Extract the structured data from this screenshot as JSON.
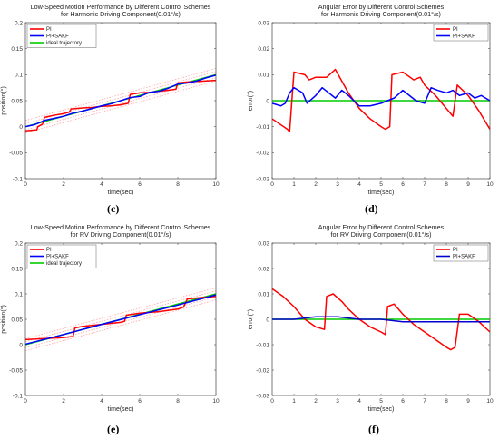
{
  "panel_labels": [
    "(c)",
    "(d)",
    "(e)",
    "(f)"
  ],
  "chart_data": [
    {
      "id": "c",
      "type": "line",
      "title": [
        "Low-Speed Motion Performance by Different Control Schemes",
        "for Harmonic Driving Component(0.01°/s)"
      ],
      "xlabel": "time(sec)",
      "ylabel": "position(°)",
      "xlim": [
        0,
        10
      ],
      "ylim": [
        -0.1,
        0.2
      ],
      "xticks": [
        0,
        2,
        4,
        6,
        8,
        10
      ],
      "yticks": [
        -0.1,
        -0.05,
        0,
        0.05,
        0.1,
        0.15,
        0.2
      ],
      "legend_position": "top-left",
      "grid": false,
      "series": [
        {
          "name": "PI",
          "color": "#ff0000",
          "x": [
            0,
            0.6,
            0.65,
            0.9,
            1.0,
            1.5,
            2.0,
            2.3,
            2.4,
            3.0,
            3.5,
            4.0,
            4.5,
            5.0,
            5.4,
            5.5,
            6.0,
            6.5,
            7.0,
            7.5,
            7.9,
            8.0,
            8.5,
            9.0,
            9.5,
            10.0
          ],
          "y": [
            -0.008,
            -0.006,
            0.0,
            0.005,
            0.018,
            0.022,
            0.025,
            0.028,
            0.034,
            0.036,
            0.037,
            0.039,
            0.04,
            0.042,
            0.045,
            0.062,
            0.065,
            0.066,
            0.068,
            0.07,
            0.072,
            0.084,
            0.086,
            0.087,
            0.088,
            0.089
          ]
        },
        {
          "name": "PI+SAKF",
          "color": "#0000ff",
          "x": [
            0,
            0.5,
            1.0,
            1.5,
            2.0,
            2.5,
            3.0,
            3.5,
            4.0,
            4.5,
            5.0,
            5.5,
            6.0,
            6.5,
            7.0,
            7.5,
            8.0,
            8.5,
            9.0,
            9.5,
            10.0
          ],
          "y": [
            0.0,
            0.004,
            0.012,
            0.016,
            0.02,
            0.026,
            0.03,
            0.035,
            0.04,
            0.044,
            0.05,
            0.056,
            0.058,
            0.066,
            0.068,
            0.074,
            0.082,
            0.084,
            0.088,
            0.094,
            0.099
          ]
        },
        {
          "name": "ideal trajectory",
          "color": "#00cc00",
          "x": [
            0,
            10
          ],
          "y": [
            0,
            0.1
          ]
        }
      ],
      "bands": [
        {
          "color": "#ff9999",
          "x": [
            0,
            10
          ],
          "lower": [
            -0.012,
            0.088
          ],
          "upper": [
            0.012,
            0.112
          ]
        },
        {
          "color": "#ff9999",
          "x": [
            0,
            10
          ],
          "lower": [
            -0.006,
            0.094
          ],
          "upper": [
            0.006,
            0.106
          ]
        }
      ]
    },
    {
      "id": "d",
      "type": "line",
      "title": [
        "Angular Error by Different Control Schemes",
        "for Harmonic Driving Component(0.01°/s)"
      ],
      "xlabel": "time(sec)",
      "ylabel": "error(°)",
      "xlim": [
        0,
        10
      ],
      "ylim": [
        -0.03,
        0.03
      ],
      "xticks": [
        0,
        1,
        2,
        3,
        4,
        5,
        6,
        7,
        8,
        9,
        10
      ],
      "yticks": [
        -0.03,
        -0.02,
        -0.01,
        0,
        0.01,
        0.02,
        0.03
      ],
      "legend_position": "top-right",
      "grid": false,
      "series": [
        {
          "name": "PI",
          "color": "#ff0000",
          "x": [
            0,
            0.7,
            0.8,
            1.0,
            1.5,
            1.7,
            2.0,
            2.5,
            2.9,
            3.5,
            4.0,
            4.5,
            5.0,
            5.2,
            5.4,
            5.5,
            6.0,
            6.5,
            6.8,
            7.0,
            7.5,
            8.0,
            8.3,
            8.5,
            9.0,
            9.5,
            10.0
          ],
          "y": [
            -0.007,
            -0.011,
            -0.012,
            0.011,
            0.01,
            0.008,
            0.009,
            0.009,
            0.012,
            0.003,
            -0.003,
            -0.007,
            -0.01,
            -0.011,
            -0.01,
            0.01,
            0.011,
            0.008,
            0.009,
            0.006,
            0.002,
            -0.003,
            -0.006,
            0.006,
            0.002,
            -0.004,
            -0.011
          ]
        },
        {
          "name": "PI+SAKF",
          "color": "#0000ff",
          "x": [
            0,
            0.4,
            0.6,
            0.8,
            1.0,
            1.4,
            1.6,
            2.0,
            2.3,
            2.6,
            2.9,
            3.2,
            3.5,
            4.0,
            4.5,
            5.0,
            5.3,
            5.6,
            6.0,
            6.3,
            6.6,
            7.0,
            7.3,
            7.6,
            8.0,
            8.3,
            8.6,
            9.0,
            9.3,
            9.6,
            10.0
          ],
          "y": [
            -0.001,
            -0.002,
            -0.001,
            0.003,
            0.005,
            0.003,
            -0.001,
            0.002,
            0.005,
            0.003,
            0.001,
            0.004,
            0.002,
            -0.002,
            -0.002,
            -0.001,
            0.0,
            0.001,
            0.004,
            0.002,
            0.0,
            -0.001,
            0.005,
            0.004,
            0.003,
            0.004,
            0.002,
            0.003,
            0.001,
            0.002,
            0.0
          ]
        },
        {
          "name": "",
          "color": "#00cc00",
          "x": [
            0,
            10
          ],
          "y": [
            0,
            0
          ]
        }
      ]
    },
    {
      "id": "e",
      "type": "line",
      "title": [
        "Low-Speed Motion Performance by Different Control Schemes",
        "for RV Driving Component(0.01°/s)"
      ],
      "xlabel": "time(sec)",
      "ylabel": "position(°)",
      "xlim": [
        0,
        10
      ],
      "ylim": [
        -0.1,
        0.2
      ],
      "xticks": [
        0,
        2,
        4,
        6,
        8,
        10
      ],
      "yticks": [
        -0.1,
        -0.05,
        0,
        0.05,
        0.1,
        0.15,
        0.2
      ],
      "legend_position": "top-left",
      "grid": false,
      "series": [
        {
          "name": "PI",
          "color": "#ff0000",
          "x": [
            0,
            1.0,
            2.0,
            2.5,
            2.6,
            3.0,
            4.0,
            5.0,
            5.2,
            5.3,
            6.0,
            7.0,
            8.0,
            8.3,
            8.5,
            9.0,
            10.0
          ],
          "y": [
            0.01,
            0.012,
            0.014,
            0.016,
            0.033,
            0.036,
            0.04,
            0.044,
            0.046,
            0.058,
            0.062,
            0.065,
            0.07,
            0.074,
            0.09,
            0.092,
            0.095
          ]
        },
        {
          "name": "PI+SAKF",
          "color": "#0000ff",
          "x": [
            0,
            2,
            4,
            6,
            8,
            10
          ],
          "y": [
            0.001,
            0.02,
            0.04,
            0.059,
            0.078,
            0.098
          ]
        },
        {
          "name": "ideal trajectory",
          "color": "#00cc00",
          "x": [
            0,
            10
          ],
          "y": [
            0,
            0.1
          ]
        }
      ],
      "bands": [
        {
          "color": "#ff9999",
          "x": [
            0,
            10
          ],
          "lower": [
            -0.012,
            0.088
          ],
          "upper": [
            0.012,
            0.112
          ]
        },
        {
          "color": "#ff9999",
          "x": [
            0,
            10
          ],
          "lower": [
            -0.006,
            0.094
          ],
          "upper": [
            0.006,
            0.106
          ]
        }
      ]
    },
    {
      "id": "f",
      "type": "line",
      "title": [
        "Angular Error by Different Control Schemes",
        "for RV Driving Component(0.01°/s)"
      ],
      "xlabel": "time(sec)",
      "ylabel": "error(°)",
      "xlim": [
        0,
        10
      ],
      "ylim": [
        -0.03,
        0.03
      ],
      "xticks": [
        0,
        1,
        2,
        3,
        4,
        5,
        6,
        7,
        8,
        9,
        10
      ],
      "yticks": [
        -0.03,
        -0.02,
        -0.01,
        0,
        0.01,
        0.02,
        0.03
      ],
      "legend_position": "top-right",
      "grid": false,
      "series": [
        {
          "name": "PI",
          "color": "#ff0000",
          "x": [
            0,
            0.5,
            1.0,
            1.5,
            2.0,
            2.4,
            2.5,
            2.8,
            3.2,
            3.5,
            4.0,
            4.5,
            5.0,
            5.2,
            5.3,
            5.6,
            6.0,
            6.5,
            7.0,
            7.5,
            8.0,
            8.2,
            8.4,
            8.6,
            9.0,
            9.5,
            10.0
          ],
          "y": [
            0.012,
            0.009,
            0.005,
            0.0,
            -0.003,
            -0.004,
            0.009,
            0.01,
            0.007,
            0.004,
            0.0,
            -0.003,
            -0.005,
            -0.006,
            0.005,
            0.006,
            0.002,
            -0.002,
            -0.005,
            -0.008,
            -0.011,
            -0.012,
            -0.011,
            0.002,
            0.002,
            -0.001,
            -0.005
          ]
        },
        {
          "name": "PI+SAKF",
          "color": "#0000cc",
          "x": [
            0,
            1,
            2,
            3,
            4,
            5,
            6,
            7,
            8,
            9,
            10
          ],
          "y": [
            0.0,
            0.0,
            0.001,
            0.001,
            0.0,
            0.0,
            -0.001,
            -0.001,
            -0.001,
            -0.001,
            -0.001
          ]
        },
        {
          "name": "",
          "color": "#00cc00",
          "x": [
            0,
            10
          ],
          "y": [
            0,
            0
          ]
        }
      ]
    }
  ]
}
